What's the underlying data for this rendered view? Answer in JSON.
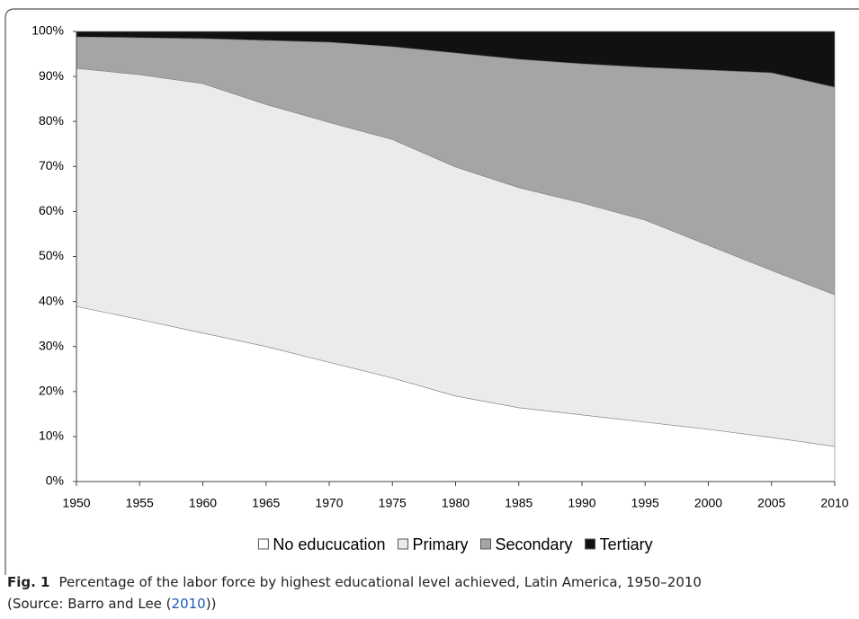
{
  "chart_data": {
    "type": "stacked_area",
    "x": [
      1950,
      1955,
      1960,
      1965,
      1970,
      1975,
      1980,
      1985,
      1990,
      1995,
      2000,
      2005,
      2010
    ],
    "series": [
      {
        "name": "No educucation",
        "color": "#ffffff",
        "values": [
          38.9,
          36,
          33,
          30,
          26.5,
          23,
          19,
          16.4,
          14.8,
          13.2,
          11.6,
          9.8,
          7.8
        ]
      },
      {
        "name": "Primary",
        "color": "#ebebeb",
        "values": [
          52.9,
          54.4,
          55.4,
          53.8,
          53.3,
          53,
          50.9,
          48.9,
          47.1,
          44.9,
          40.9,
          37.1,
          33.7
        ]
      },
      {
        "name": "Secondary",
        "color": "#a5a5a5",
        "values": [
          7,
          8.2,
          10,
          14.2,
          17.8,
          20.6,
          25.3,
          28.5,
          30.9,
          33.9,
          38.9,
          43.9,
          46.1
        ]
      },
      {
        "name": "Tertiary",
        "color": "#111111",
        "values": [
          1.2,
          1.4,
          1.6,
          2,
          2.4,
          3.4,
          4.8,
          6.2,
          7.2,
          8,
          8.6,
          9.2,
          12.4
        ]
      }
    ],
    "xlim": [
      1950,
      2010
    ],
    "xticks": [
      1950,
      1955,
      1960,
      1965,
      1970,
      1975,
      1980,
      1985,
      1990,
      1995,
      2000,
      2005,
      2010
    ],
    "ylim": [
      0,
      100
    ],
    "yticks": [
      {
        "value": 0,
        "label": "0%"
      },
      {
        "value": 10,
        "label": "10%"
      },
      {
        "value": 20,
        "label": "20%"
      },
      {
        "value": 30,
        "label": "30%"
      },
      {
        "value": 40,
        "label": "40%"
      },
      {
        "value": 50,
        "label": "50%"
      },
      {
        "value": 60,
        "label": "60%"
      },
      {
        "value": 70,
        "label": "70%"
      },
      {
        "value": 80,
        "label": "80%"
      },
      {
        "value": 90,
        "label": "90%"
      },
      {
        "value": 100,
        "label": "100%"
      }
    ],
    "legend": "bottom"
  },
  "caption": {
    "label": "Fig. 1",
    "text": "Percentage of the labor force by highest educational level achieved, Latin America, 1950–2010",
    "source_prefix": "(Source: Barro and Lee (",
    "source_link": "2010",
    "source_suffix": "))"
  }
}
